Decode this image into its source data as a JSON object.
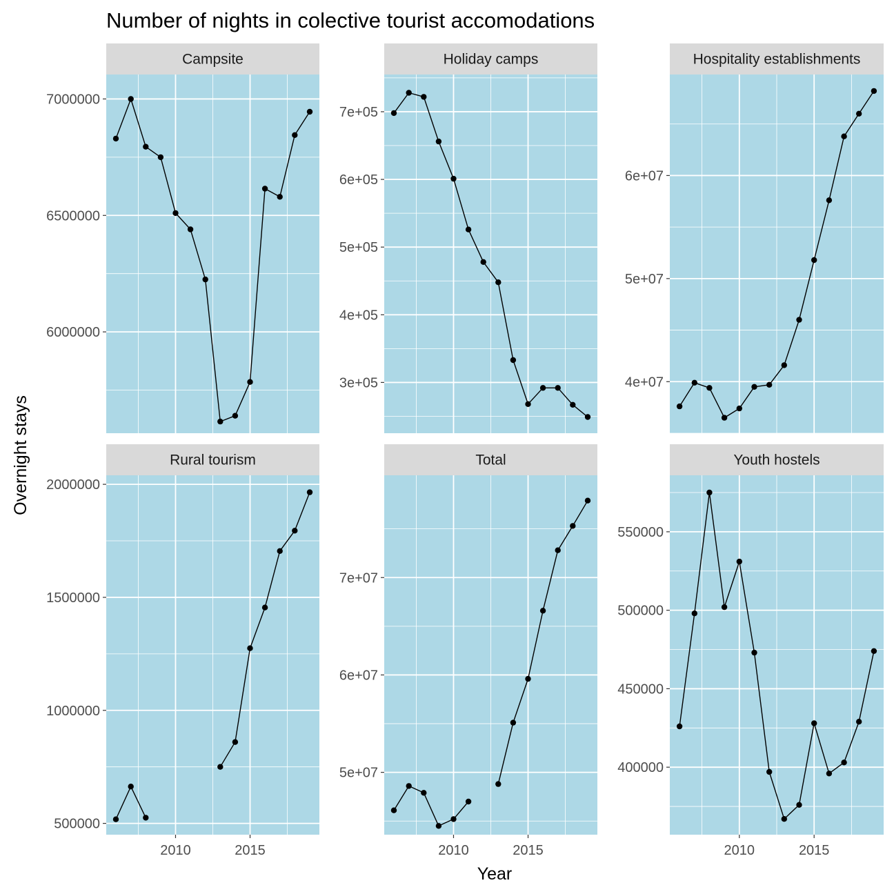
{
  "chart_data": {
    "type": "line",
    "title": "Number of nights in colective tourist accomodations",
    "xlabel": "Year",
    "ylabel": "Overnight stays",
    "xlim": [
      2005.35,
      2019.65
    ],
    "x_ticks": [
      2010,
      2015
    ],
    "x_tick_labels": [
      "2010",
      "2015"
    ],
    "grid": true,
    "colors": {
      "panel_background": "#add8e6",
      "grid": "#ffffff",
      "strip_background": "#d9d9d9",
      "line": "#000000",
      "point": "#000000"
    },
    "facets": [
      {
        "name": "Campsite",
        "ylim": [
          5565000,
          7105000
        ],
        "y_ticks": [
          6000000,
          6500000,
          7000000
        ],
        "y_tick_labels": [
          "6000000",
          "6500000",
          "7000000"
        ],
        "x": [
          2006,
          2007,
          2008,
          2009,
          2010,
          2011,
          2012,
          2013,
          2014,
          2015,
          2016,
          2017,
          2018,
          2019
        ],
        "y": [
          6830000,
          7000000,
          6795000,
          6750000,
          6510000,
          6440000,
          6225000,
          5615000,
          5640000,
          5785000,
          6615000,
          6580000,
          6845000,
          6945000
        ]
      },
      {
        "name": "Holiday camps",
        "ylim": [
          225000,
          755000
        ],
        "y_ticks": [
          300000,
          400000,
          500000,
          600000,
          700000
        ],
        "y_tick_labels": [
          "3e+05",
          "4e+05",
          "5e+05",
          "6e+05",
          "7e+05"
        ],
        "x": [
          2006,
          2007,
          2008,
          2009,
          2010,
          2011,
          2012,
          2013,
          2014,
          2015,
          2016,
          2017,
          2018,
          2019
        ],
        "y": [
          698000,
          728000,
          722000,
          656000,
          601000,
          526000,
          478000,
          448000,
          333000,
          268000,
          292000,
          292000,
          267000,
          249000
        ]
      },
      {
        "name": "Hospitality establishments",
        "ylim": [
          35000000,
          69800000
        ],
        "y_ticks": [
          40000000,
          50000000,
          60000000
        ],
        "y_tick_labels": [
          "4e+07",
          "5e+07",
          "6e+07"
        ],
        "x": [
          2006,
          2007,
          2008,
          2009,
          2010,
          2011,
          2012,
          2013,
          2014,
          2015,
          2016,
          2017,
          2018,
          2019
        ],
        "y": [
          37600000,
          39900000,
          39400000,
          36500000,
          37400000,
          39500000,
          39700000,
          41600000,
          46000000,
          51800000,
          57600000,
          63800000,
          66000000,
          68200000
        ]
      },
      {
        "name": "Rural tourism",
        "ylim": [
          450000,
          2040000
        ],
        "y_ticks": [
          500000,
          1000000,
          1500000,
          2000000
        ],
        "y_tick_labels": [
          "500000",
          "1000000",
          "1500000",
          "2000000"
        ],
        "x": [
          2006,
          2007,
          2008,
          2009,
          2010,
          2011,
          2012,
          2013,
          2014,
          2015,
          2016,
          2017,
          2018,
          2019
        ],
        "y": [
          518000,
          663000,
          525000,
          null,
          null,
          null,
          null,
          750000,
          860000,
          1275000,
          1455000,
          1705000,
          1795000,
          1965000
        ]
      },
      {
        "name": "Total",
        "ylim": [
          43600000,
          80500000
        ],
        "y_ticks": [
          50000000,
          60000000,
          70000000
        ],
        "y_tick_labels": [
          "5e+07",
          "6e+07",
          "7e+07"
        ],
        "x": [
          2006,
          2007,
          2008,
          2009,
          2010,
          2011,
          2012,
          2013,
          2014,
          2015,
          2016,
          2017,
          2018,
          2019
        ],
        "y": [
          46100000,
          48600000,
          47900000,
          44500000,
          45200000,
          47000000,
          null,
          48800000,
          55100000,
          59600000,
          66600000,
          72800000,
          75300000,
          77900000
        ]
      },
      {
        "name": "Youth hostels",
        "ylim": [
          357000,
          586000
        ],
        "y_ticks": [
          400000,
          450000,
          500000,
          550000
        ],
        "y_tick_labels": [
          "400000",
          "450000",
          "500000",
          "550000"
        ],
        "x": [
          2006,
          2007,
          2008,
          2009,
          2010,
          2011,
          2012,
          2013,
          2014,
          2015,
          2016,
          2017,
          2018,
          2019
        ],
        "y": [
          426000,
          498000,
          575000,
          502000,
          531000,
          473000,
          397000,
          367000,
          376000,
          428000,
          396000,
          403000,
          429000,
          474000
        ]
      }
    ]
  }
}
